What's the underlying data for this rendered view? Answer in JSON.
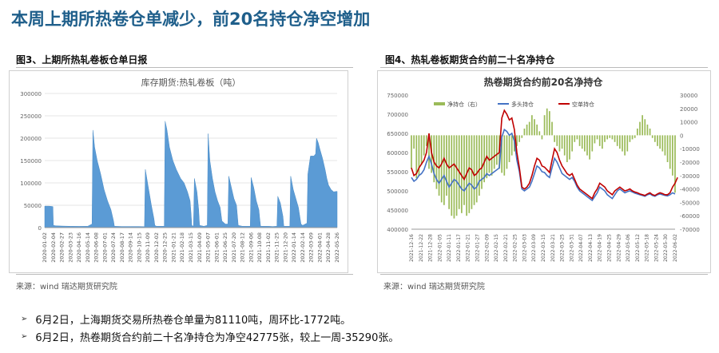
{
  "page": {
    "title": "本周上期所热卷仓单减少，前20名持仓净空增加"
  },
  "figures": [
    {
      "label": "图3、上期所热轧卷板仓单日报",
      "source": "来源：wind   瑞达期货研究院"
    },
    {
      "label": "图4、热轧卷板期货合约前二十名净持仓",
      "source": "来源：wind   瑞达期货研究院"
    }
  ],
  "bullets": [
    {
      "marker": "➢",
      "text": "6月2日，上海期货交易所热卷仓单量为81110吨，周环比-1772吨。"
    },
    {
      "marker": "➢",
      "text": "6月2日，热卷期货合约前二十名净持仓为净空42775张，较上一周-35290张。"
    }
  ],
  "colors": {
    "title": "#1f5f8b",
    "area": "#5b9bd5",
    "long": "#4472c4",
    "short": "#c00000",
    "net": "#9bbb59"
  },
  "chart_data": [
    {
      "type": "area",
      "title": "库存期货:热轧卷板（吨）",
      "ylim": [
        0,
        300000
      ],
      "yticks": [
        "0",
        "50000",
        "100000",
        "150000",
        "200000",
        "250000",
        "300000"
      ],
      "xticks": [
        "2020-01-02",
        "2020-02-04",
        "2020-02-27",
        "2020-03-23",
        "2020-04-16",
        "2020-05-14",
        "2020-06-08",
        "2020-07-01",
        "2020-07-24",
        "2020-08-17",
        "2020-09-14",
        "2020-10-15",
        "2020-11-09",
        "2020-12-02",
        "2020-12-25",
        "2021-01-21",
        "2021-02-18",
        "2021-03-15",
        "2021-04-09",
        "2021-05-07",
        "2021-06-01",
        "2021-06-25",
        "2021-07-20",
        "2021-08-12",
        "2021-09-06",
        "2021-10-08",
        "2021-11-02",
        "2021-11-25",
        "2021-12-20",
        "2022-01-14",
        "2022-02-14",
        "2022-03-09",
        "2022-04-01",
        "2022-04-28",
        "2022-05-26"
      ],
      "points": [
        [
          0,
          48000
        ],
        [
          0.5,
          48000
        ],
        [
          0.95,
          47000
        ],
        [
          1.0,
          5000
        ],
        [
          1.3,
          4000
        ],
        [
          2,
          3500
        ],
        [
          3,
          3000
        ],
        [
          4,
          2800
        ],
        [
          5,
          3000
        ],
        [
          5.5,
          8000
        ],
        [
          5.6,
          218000
        ],
        [
          5.8,
          180000
        ],
        [
          6.1,
          150000
        ],
        [
          6.5,
          120000
        ],
        [
          6.9,
          85000
        ],
        [
          7.3,
          60000
        ],
        [
          7.7,
          40000
        ],
        [
          8.0,
          15000
        ],
        [
          8.1,
          3000
        ],
        [
          9,
          2500
        ],
        [
          10,
          2500
        ],
        [
          11,
          2500
        ],
        [
          11.6,
          2000
        ],
        [
          11.7,
          130000
        ],
        [
          12.0,
          95000
        ],
        [
          12.4,
          50000
        ],
        [
          12.7,
          20000
        ],
        [
          12.8,
          5000
        ],
        [
          13,
          3000
        ],
        [
          13.9,
          3000
        ],
        [
          14.0,
          238000
        ],
        [
          14.2,
          220000
        ],
        [
          14.5,
          180000
        ],
        [
          14.9,
          150000
        ],
        [
          15.3,
          130000
        ],
        [
          15.8,
          110000
        ],
        [
          16.2,
          100000
        ],
        [
          16.6,
          80000
        ],
        [
          16.9,
          60000
        ],
        [
          17.0,
          35000
        ],
        [
          17.1,
          5000
        ],
        [
          17.3,
          3000
        ],
        [
          17.4,
          110000
        ],
        [
          17.7,
          80000
        ],
        [
          17.9,
          40000
        ],
        [
          18.0,
          5000
        ],
        [
          18.5,
          3000
        ],
        [
          18.9,
          5000
        ],
        [
          19.0,
          210000
        ],
        [
          19.2,
          150000
        ],
        [
          19.5,
          110000
        ],
        [
          19.8,
          80000
        ],
        [
          20.1,
          60000
        ],
        [
          20.4,
          45000
        ],
        [
          20.6,
          15000
        ],
        [
          21,
          8000
        ],
        [
          21.3,
          8000
        ],
        [
          21.4,
          115000
        ],
        [
          21.7,
          90000
        ],
        [
          22.0,
          65000
        ],
        [
          22.3,
          50000
        ],
        [
          22.5,
          5000
        ],
        [
          23,
          3000
        ],
        [
          23.9,
          3000
        ],
        [
          24.0,
          112000
        ],
        [
          24.3,
          90000
        ],
        [
          24.6,
          60000
        ],
        [
          24.9,
          40000
        ],
        [
          25.0,
          20000
        ],
        [
          25.1,
          3000
        ],
        [
          26,
          3000
        ],
        [
          26.5,
          2500
        ],
        [
          27,
          3000
        ],
        [
          27.1,
          70000
        ],
        [
          27.4,
          55000
        ],
        [
          27.7,
          25000
        ],
        [
          27.8,
          3000
        ],
        [
          28.5,
          3000
        ],
        [
          28.6,
          115000
        ],
        [
          28.9,
          85000
        ],
        [
          29.2,
          65000
        ],
        [
          29.5,
          45000
        ],
        [
          29.7,
          20000
        ],
        [
          29.8,
          8000
        ],
        [
          30,
          5000
        ],
        [
          30.5,
          10000
        ],
        [
          30.6,
          120000
        ],
        [
          30.9,
          160000
        ],
        [
          31.3,
          160000
        ],
        [
          31.5,
          165000
        ],
        [
          31.6,
          200000
        ],
        [
          31.8,
          190000
        ],
        [
          32.0,
          175000
        ],
        [
          32.3,
          155000
        ],
        [
          32.6,
          130000
        ],
        [
          32.8,
          110000
        ],
        [
          33.0,
          95000
        ],
        [
          33.3,
          85000
        ],
        [
          33.6,
          80000
        ],
        [
          34,
          81110
        ]
      ]
    },
    {
      "type": "line",
      "title": "热卷期货合约前20名净持仓",
      "legend": [
        "净持仓（右）",
        "多头持仓",
        "空单持仓"
      ],
      "ylim": [
        400000,
        750000
      ],
      "y2lim": [
        -70000,
        30000
      ],
      "yticks": [
        "400000",
        "450000",
        "500000",
        "550000",
        "600000",
        "650000",
        "700000",
        "750000"
      ],
      "y2ticks": [
        "30000",
        "20000",
        "10000",
        "0",
        "-10000",
        "-20000",
        "-30000",
        "-40000",
        "-50000",
        "-60000",
        "-70000"
      ],
      "xticks": [
        "2021-12-16",
        "2021-12-22",
        "2021-12-28",
        "2022-01-05",
        "2022-01-11",
        "2022-01-17",
        "2022-01-21",
        "2022-01-27",
        "2022-02-09",
        "2022-02-15",
        "2022-02-21",
        "2022-02-25",
        "2022-03-03",
        "2022-03-09",
        "2022-03-15",
        "2022-03-21",
        "2022-03-25",
        "2022-03-31",
        "2022-04-07",
        "2022-04-13",
        "2022-04-19",
        "2022-04-25",
        "2022-04-29",
        "2022-05-06",
        "2022-05-12",
        "2022-05-18",
        "2022-05-24",
        "2022-05-30",
        "2022-06-02"
      ],
      "net": [
        -25000,
        -10000,
        -32000,
        -30000,
        -22000,
        -15000,
        -8000,
        -25000,
        -28000,
        -35000,
        -40000,
        -45000,
        -50000,
        -52000,
        -45000,
        -55000,
        -60000,
        -62000,
        -60000,
        -55000,
        -58000,
        -52000,
        -60000,
        -58000,
        -55000,
        -52000,
        -50000,
        -45000,
        -40000,
        -35000,
        -32000,
        -28000,
        -30000,
        -25000,
        -22000,
        -25000,
        -28000,
        -30000,
        -25000,
        -20000,
        -15000,
        -12000,
        -8000,
        -5000,
        -2000,
        5000,
        8000,
        10000,
        15000,
        12000,
        8000,
        3000,
        -3000,
        15000,
        20000,
        18000,
        10000,
        -5000,
        -8000,
        -12000,
        -10000,
        -15000,
        -20000,
        -18000,
        -12000,
        -5000,
        -3000,
        -8000,
        -10000,
        -12000,
        -15000,
        -18000,
        -12000,
        -6000,
        -3000,
        -8000,
        -10000,
        -5000,
        -3000,
        -2000,
        -3000,
        -5000,
        -8000,
        -10000,
        -12000,
        -15000,
        -12000,
        -5000,
        -3000,
        -2000,
        5000,
        10000,
        15000,
        12000,
        8000,
        5000,
        -2000,
        -5000,
        -8000,
        -10000,
        -12000,
        -15000,
        -20000,
        -25000,
        -30000,
        -42775
      ],
      "long": [
        535000,
        525000,
        530000,
        540000,
        545000,
        555000,
        575000,
        590000,
        570000,
        545000,
        530000,
        520000,
        530000,
        540000,
        525000,
        510000,
        520000,
        530000,
        525000,
        515000,
        505000,
        500000,
        510000,
        520000,
        515000,
        505000,
        510000,
        525000,
        530000,
        535000,
        545000,
        540000,
        545000,
        550000,
        555000,
        560000,
        640000,
        660000,
        655000,
        645000,
        650000,
        630000,
        580000,
        550000,
        505000,
        500000,
        505000,
        510000,
        525000,
        545000,
        565000,
        560000,
        550000,
        548000,
        540000,
        535000,
        560000,
        585000,
        575000,
        560000,
        545000,
        540000,
        535000,
        530000,
        535000,
        525000,
        510000,
        500000,
        495000,
        490000,
        485000,
        480000,
        475000,
        485000,
        495000,
        510000,
        505000,
        500000,
        490000,
        485000,
        480000,
        490000,
        500000,
        505000,
        500000,
        495000,
        498000,
        500000,
        497000,
        494000,
        492000,
        490000,
        488000,
        486000,
        490000,
        492000,
        488000,
        486000,
        490000,
        492000,
        490000,
        488000,
        487000,
        490000,
        495000,
        492000
      ],
      "short": [
        560000,
        540000,
        545000,
        560000,
        570000,
        580000,
        600000,
        650000,
        600000,
        575000,
        565000,
        560000,
        570000,
        585000,
        570000,
        560000,
        565000,
        570000,
        560000,
        550000,
        540000,
        530000,
        545000,
        560000,
        555000,
        540000,
        545000,
        555000,
        560000,
        575000,
        590000,
        580000,
        585000,
        590000,
        595000,
        600000,
        690000,
        710000,
        700000,
        685000,
        690000,
        660000,
        600000,
        560000,
        510000,
        505000,
        510000,
        520000,
        540000,
        565000,
        585000,
        580000,
        565000,
        562000,
        555000,
        548000,
        580000,
        610000,
        600000,
        580000,
        565000,
        555000,
        545000,
        540000,
        545000,
        530000,
        515000,
        505000,
        500000,
        495000,
        490000,
        485000,
        480000,
        495000,
        505000,
        520000,
        515000,
        510000,
        500000,
        495000,
        490000,
        500000,
        505000,
        510000,
        505000,
        500000,
        502000,
        505000,
        500000,
        497000,
        495000,
        492000,
        490000,
        488000,
        492000,
        495000,
        490000,
        488000,
        492000,
        495000,
        493000,
        490000,
        490000,
        495000,
        510000,
        520000,
        535000
      ]
    }
  ]
}
